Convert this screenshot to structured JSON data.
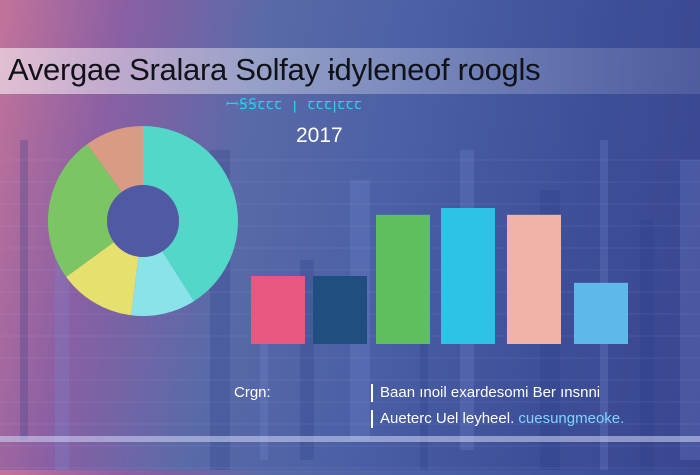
{
  "header": {
    "title": "Avergae Sralara Solfay ɨdyleneof roogls",
    "subtitle": "ꟷꞨꞨꞇꞇꞇ ꞁ ꞇꞇꞇꞁꞇꞇꞇ",
    "year": "2017"
  },
  "captions": {
    "left": "Crgn:",
    "line1": "Baan ınoil exardesomi  Ber ınsnni",
    "line2_a": "Aueterc Uel leyheel. ",
    "line2_b": "cuesungmeoke."
  },
  "chart_data": [
    {
      "type": "pie",
      "variant": "donut",
      "slices": [
        {
          "label": "",
          "value": 41,
          "color": "#52d7c8"
        },
        {
          "label": "",
          "value": 11,
          "color": "#8be3ea"
        },
        {
          "label": "",
          "value": 13,
          "color": "#e6e06e"
        },
        {
          "label": "",
          "value": 25,
          "color": "#7cc564"
        },
        {
          "label": "",
          "value": 10,
          "color": "#d99b83"
        }
      ]
    },
    {
      "type": "bar",
      "categories": [
        "",
        "",
        "",
        "",
        "",
        ""
      ],
      "values": [
        1.0,
        1.0,
        1.9,
        2.0,
        1.9,
        0.9
      ],
      "colors": [
        "#e8577f",
        "#1f4f7e",
        "#5fbe5f",
        "#2cc3e6",
        "#f0b4a6",
        "#5fb8ea"
      ],
      "ylim": [
        0,
        2.5
      ]
    }
  ]
}
